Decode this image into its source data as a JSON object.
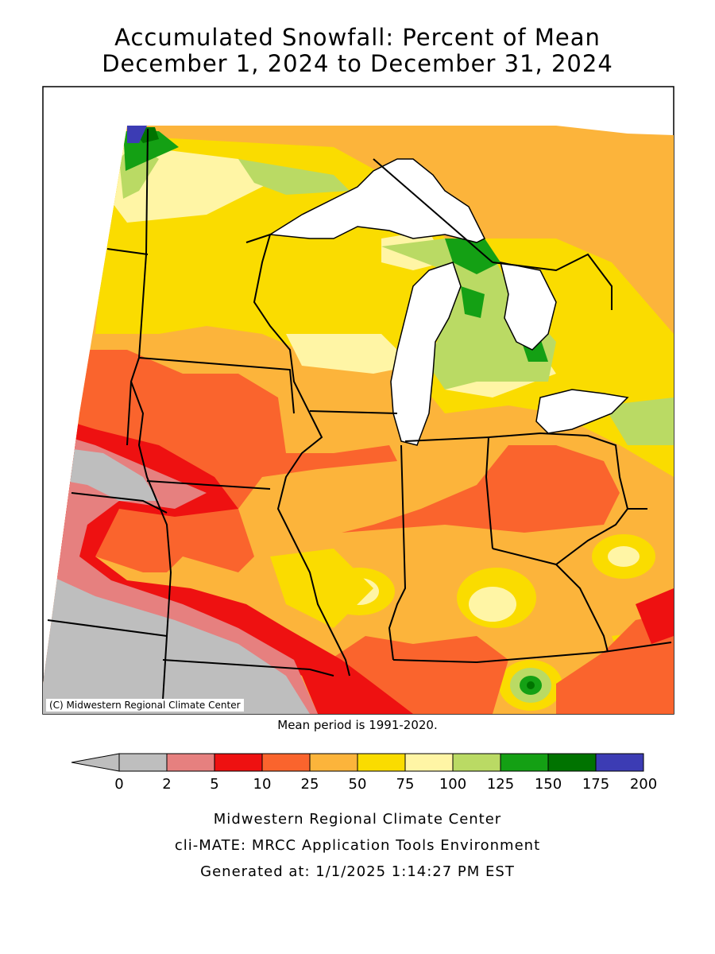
{
  "title": {
    "line1": "Accumulated Snowfall: Percent of Mean",
    "line2": "December 1, 2024 to December 31, 2024"
  },
  "map": {
    "credit": "(C) Midwestern Regional Climate Center",
    "mean_period_note": "Mean period is 1991-2020."
  },
  "legend": {
    "ticks": [
      "0",
      "2",
      "5",
      "10",
      "25",
      "50",
      "75",
      "100",
      "125",
      "150",
      "175",
      "200"
    ],
    "colors": [
      "#bebebe",
      "#e6807f",
      "#ee1111",
      "#fa642d",
      "#fcb43b",
      "#fadc00",
      "#fff5a5",
      "#bada64",
      "#14a014",
      "#007300",
      "#3c3cb4"
    ],
    "under_color": "#bebebe"
  },
  "footer": {
    "line1": "Midwestern Regional Climate Center",
    "line2": "cli-MATE: MRCC Application Tools Environment",
    "line3": "Generated at: 1/1/2025 1:14:27 PM EST"
  }
}
